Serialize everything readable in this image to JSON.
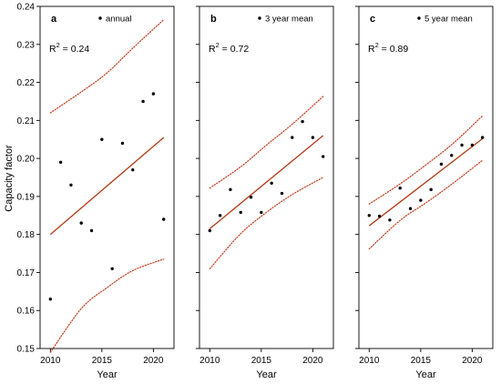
{
  "colors": {
    "fit": "#b23a16",
    "ci": "#c0391b",
    "point": "#000000"
  },
  "y_axis_label": "Capacity factor",
  "chart_data": [
    {
      "type": "scatter",
      "panel": "a",
      "legend": "annual",
      "r2_prefix": "R",
      "r2_sup": "2",
      "r2_value": " = 0.24",
      "xlabel": "Year",
      "ylabel": "Capacity factor",
      "xlim": [
        2009,
        2022
      ],
      "ylim": [
        0.15,
        0.24
      ],
      "xticks": [
        2010,
        2015,
        2020
      ],
      "yticks": [
        0.15,
        0.16,
        0.17,
        0.18,
        0.19,
        0.2,
        0.21,
        0.22,
        0.23,
        0.24
      ],
      "ytick_labels": [
        "0.15",
        "0.16",
        "0.17",
        "0.18",
        "0.19",
        "0.20",
        "0.21",
        "0.22",
        "0.23",
        "0.24"
      ],
      "x": [
        2010,
        2011,
        2012,
        2013,
        2014,
        2015,
        2016,
        2017,
        2018,
        2019,
        2020,
        2021
      ],
      "y": [
        0.163,
        0.199,
        0.193,
        0.183,
        0.181,
        0.205,
        0.171,
        0.204,
        0.197,
        0.215,
        0.217,
        0.184
      ],
      "fit": {
        "x": [
          2010,
          2021
        ],
        "y": [
          0.18,
          0.2055
        ]
      },
      "ci_upper": {
        "x": [
          2010,
          2013,
          2015.5,
          2018,
          2021
        ],
        "y": [
          0.212,
          0.2175,
          0.2225,
          0.229,
          0.2365
        ]
      },
      "ci_lower": {
        "x": [
          2010,
          2013,
          2015.5,
          2018,
          2021
        ],
        "y": [
          0.149,
          0.1605,
          0.166,
          0.1705,
          0.1735
        ]
      }
    },
    {
      "type": "scatter",
      "panel": "b",
      "legend": "3 year mean",
      "r2_prefix": "R",
      "r2_sup": "2",
      "r2_value": " = 0.72",
      "xlabel": "Year",
      "xlim": [
        2009,
        2022
      ],
      "ylim": [
        0.15,
        0.24
      ],
      "xticks": [
        2010,
        2015,
        2020
      ],
      "x": [
        2010,
        2011,
        2012,
        2013,
        2014,
        2015,
        2016,
        2017,
        2018,
        2019,
        2020,
        2021
      ],
      "y": [
        0.181,
        0.185,
        0.1918,
        0.1858,
        0.1898,
        0.1858,
        0.1935,
        0.1908,
        0.2055,
        0.2097,
        0.2055,
        0.2005
      ],
      "fit": {
        "x": [
          2010,
          2021
        ],
        "y": [
          0.1815,
          0.206
        ]
      },
      "ci_upper": {
        "x": [
          2010,
          2013,
          2015.5,
          2018,
          2021
        ],
        "y": [
          0.1922,
          0.1978,
          0.2035,
          0.209,
          0.2163
        ]
      },
      "ci_lower": {
        "x": [
          2010,
          2013,
          2015.5,
          2018,
          2021
        ],
        "y": [
          0.171,
          0.1802,
          0.1858,
          0.1905,
          0.195
        ]
      }
    },
    {
      "type": "scatter",
      "panel": "c",
      "legend": "5 year mean",
      "r2_prefix": "R",
      "r2_sup": "2",
      "r2_value": " = 0.89",
      "xlabel": "Year",
      "xlim": [
        2009,
        2022
      ],
      "ylim": [
        0.15,
        0.24
      ],
      "xticks": [
        2010,
        2015,
        2020
      ],
      "x": [
        2010,
        2011,
        2012,
        2013,
        2014,
        2015,
        2016,
        2017,
        2018,
        2019,
        2020,
        2021
      ],
      "y": [
        0.185,
        0.1848,
        0.1838,
        0.1922,
        0.1868,
        0.189,
        0.1918,
        0.1985,
        0.2008,
        0.2035,
        0.2035,
        0.2055
      ],
      "fit": {
        "x": [
          2010,
          2021
        ],
        "y": [
          0.1823,
          0.2052
        ]
      },
      "ci_upper": {
        "x": [
          2010,
          2013,
          2015.5,
          2018,
          2021
        ],
        "y": [
          0.188,
          0.1933,
          0.1983,
          0.2036,
          0.2112
        ]
      },
      "ci_lower": {
        "x": [
          2010,
          2013,
          2015.5,
          2018,
          2021
        ],
        "y": [
          0.1762,
          0.1837,
          0.1883,
          0.1932,
          0.1995
        ]
      }
    }
  ]
}
